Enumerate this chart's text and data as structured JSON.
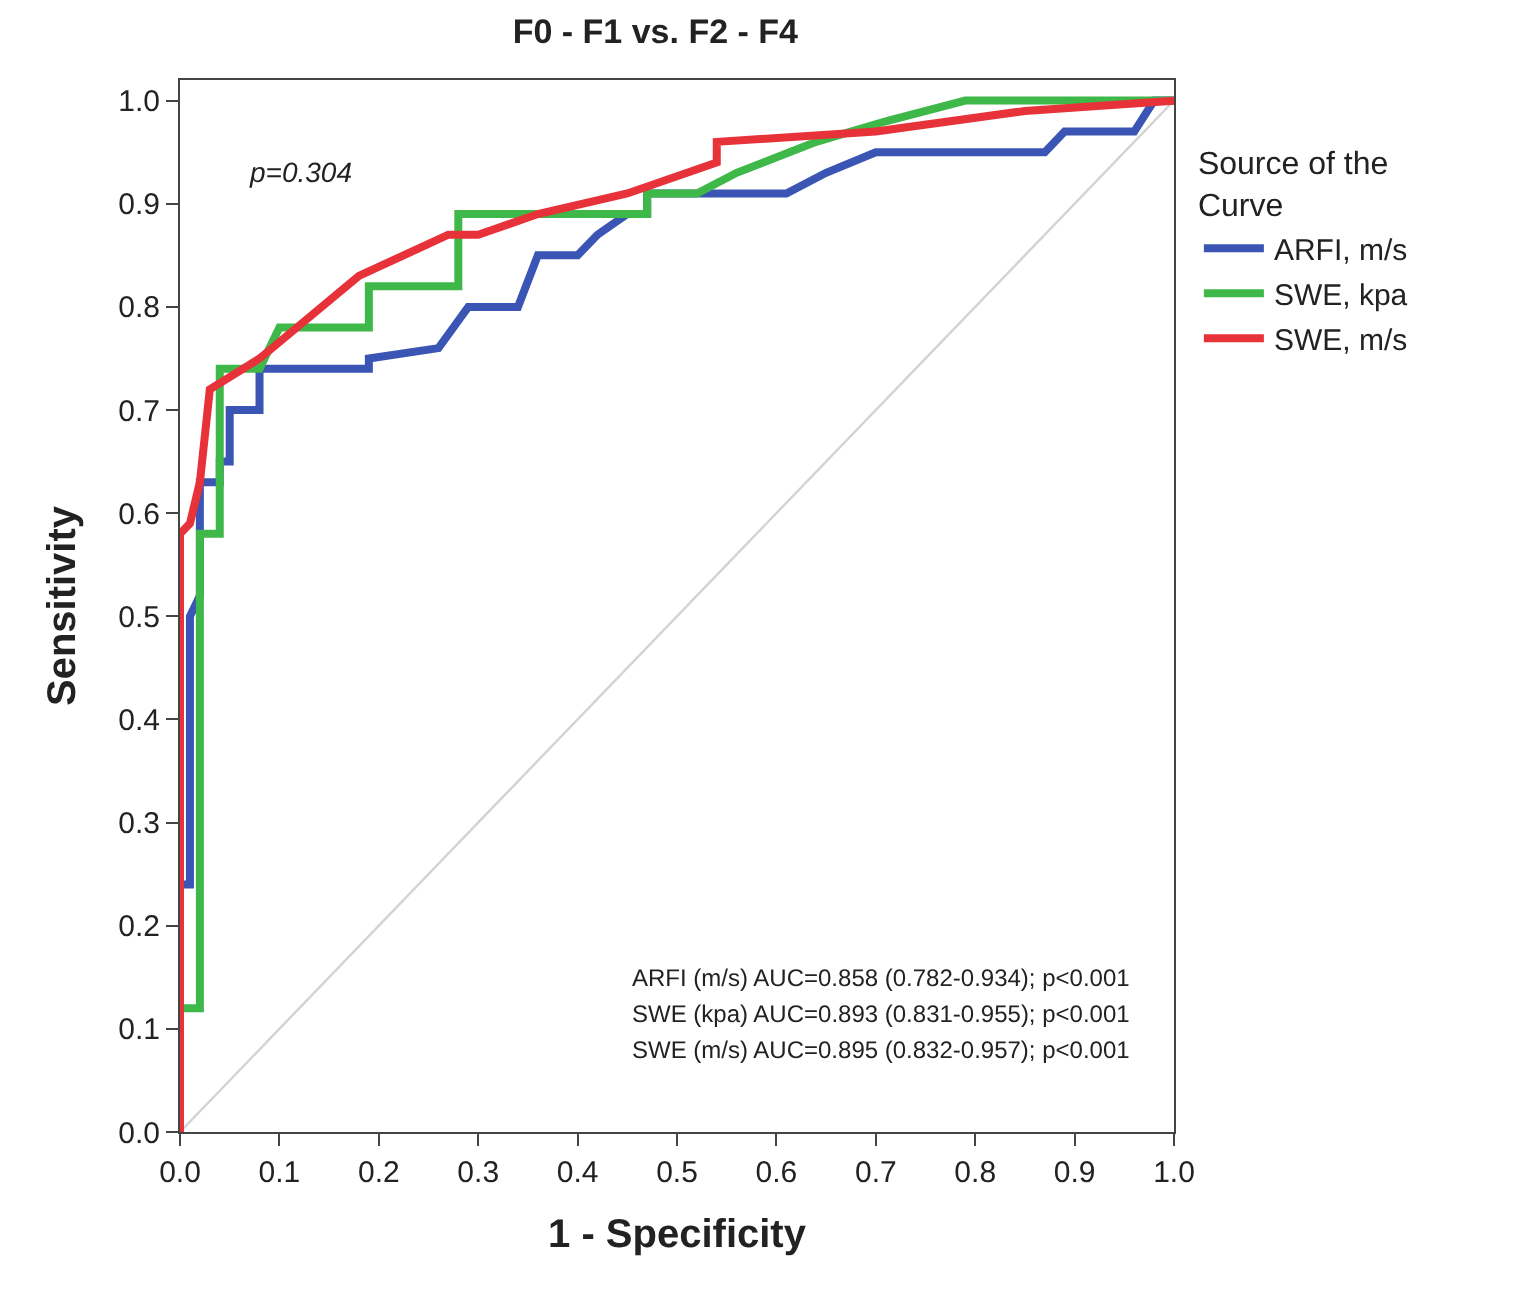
{
  "chart_data": {
    "type": "line",
    "title": "F0 - F1 vs. F2 - F4",
    "xlabel": "1 - Specificity",
    "ylabel": "Sensitivity",
    "legend_title": "Source of the Curve",
    "legend": "right",
    "marker": "none",
    "xlim": [
      0,
      1
    ],
    "ylim": [
      0,
      1.02
    ],
    "xticks": [
      {
        "value": 0,
        "label": "0.0"
      },
      {
        "value": 0.1,
        "label": "0.1"
      },
      {
        "value": 0.2,
        "label": "0.2"
      },
      {
        "value": 0.3,
        "label": "0.3"
      },
      {
        "value": 0.4,
        "label": "0.4"
      },
      {
        "value": 0.5,
        "label": "0.5"
      },
      {
        "value": 0.6,
        "label": "0.6"
      },
      {
        "value": 0.7,
        "label": "0.7"
      },
      {
        "value": 0.8,
        "label": "0.8"
      },
      {
        "value": 0.9,
        "label": "0.9"
      },
      {
        "value": 1,
        "label": "1.0"
      }
    ],
    "yticks": [
      {
        "value": 0,
        "label": "0.0"
      },
      {
        "value": 0.1,
        "label": "0.1"
      },
      {
        "value": 0.2,
        "label": "0.2"
      },
      {
        "value": 0.3,
        "label": "0.3"
      },
      {
        "value": 0.4,
        "label": "0.4"
      },
      {
        "value": 0.5,
        "label": "0.5"
      },
      {
        "value": 0.6,
        "label": "0.6"
      },
      {
        "value": 0.7,
        "label": "0.7"
      },
      {
        "value": 0.8,
        "label": "0.8"
      },
      {
        "value": 0.9,
        "label": "0.9"
      },
      {
        "value": 1,
        "label": "1.0"
      }
    ],
    "annotations": [
      "p=0.304",
      "ARFI (m/s) AUC=0.858 (0.782-0.934); p<0.001",
      "SWE (kpa) AUC=0.893 (0.831-0.955); p<0.001",
      "SWE (m/s) AUC=0.895 (0.832-0.957); p<0.001"
    ],
    "series": [
      {
        "type": "line",
        "color": "#d3d3d3",
        "x": [
          0,
          1
        ],
        "values": [
          0,
          1
        ]
      },
      {
        "name": "ARFI, m/s",
        "color": "#3a55b4",
        "x": [
          0,
          0,
          0.01,
          0.01,
          0.02,
          0.02,
          0.04,
          0.04,
          0.05,
          0.05,
          0.08,
          0.08,
          0.19,
          0.19,
          0.26,
          0.29,
          0.34,
          0.36,
          0.4,
          0.42,
          0.45,
          0.47,
          0.47,
          0.61,
          0.65,
          0.7,
          0.87,
          0.89,
          0.96,
          0.98,
          1
        ],
        "values": [
          0,
          0.24,
          0.24,
          0.5,
          0.52,
          0.63,
          0.63,
          0.65,
          0.65,
          0.7,
          0.7,
          0.74,
          0.74,
          0.75,
          0.76,
          0.8,
          0.8,
          0.85,
          0.85,
          0.87,
          0.89,
          0.89,
          0.91,
          0.91,
          0.93,
          0.95,
          0.95,
          0.97,
          0.97,
          1,
          1
        ]
      },
      {
        "name": "SWE, kpa",
        "color": "#3fb84a",
        "x": [
          0,
          0,
          0.02,
          0.02,
          0.04,
          0.04,
          0.08,
          0.1,
          0.19,
          0.19,
          0.28,
          0.28,
          0.47,
          0.47,
          0.52,
          0.56,
          0.64,
          0.71,
          0.79,
          1
        ],
        "values": [
          0,
          0.12,
          0.12,
          0.58,
          0.58,
          0.74,
          0.74,
          0.78,
          0.78,
          0.82,
          0.82,
          0.89,
          0.89,
          0.91,
          0.91,
          0.93,
          0.96,
          0.98,
          1,
          1
        ]
      },
      {
        "name": "SWE, m/s",
        "color": "#e8323a",
        "x": [
          0,
          0,
          0.01,
          0.02,
          0.03,
          0.08,
          0.13,
          0.18,
          0.27,
          0.3,
          0.36,
          0.45,
          0.54,
          0.54,
          0.7,
          0.85,
          1
        ],
        "values": [
          0,
          0.58,
          0.59,
          0.63,
          0.72,
          0.75,
          0.79,
          0.83,
          0.87,
          0.87,
          0.89,
          0.91,
          0.94,
          0.96,
          0.97,
          0.99,
          1
        ]
      }
    ]
  }
}
